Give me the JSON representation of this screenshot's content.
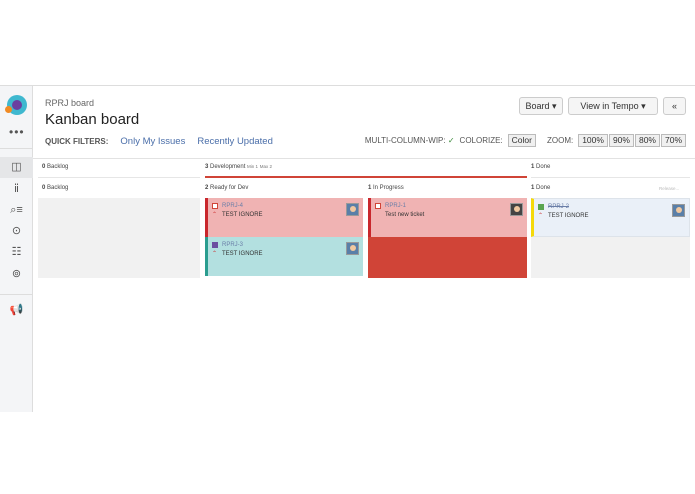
{
  "header": {
    "breadcrumb": "RPRJ board",
    "title": "Kanban board"
  },
  "quick_filters": {
    "label": "QUICK FILTERS:",
    "items": [
      "Only My Issues",
      "Recently Updated"
    ]
  },
  "toolbar": {
    "board": "Board ▾",
    "tempo": "View in Tempo ▾",
    "collapse": "«",
    "wip_label": "MULTI-COLUMN-WIP:",
    "wip_check": "✓",
    "colorize_label": "COLORIZE:",
    "color_btn": "Color",
    "zoom_label": "ZOOM:",
    "zoom": [
      "100%",
      "90%",
      "80%",
      "70%"
    ]
  },
  "sidebar": {
    "icons": [
      "board-icon",
      "reports-icon",
      "issues-search-icon",
      "releases-icon",
      "components-icon",
      "settings-icon",
      "feedback-icon"
    ]
  },
  "columns": {
    "top": [
      {
        "count": "0",
        "name": "Backlog"
      },
      {
        "count": "3",
        "name": "Development",
        "min": "Min 1",
        "max": "Max 2"
      },
      {
        "count": "1",
        "name": "Done"
      }
    ],
    "sub": [
      {
        "count": "0",
        "name": "Backlog"
      },
      {
        "count": "2",
        "name": "Ready for Dev"
      },
      {
        "count": "1",
        "name": "In Progress"
      },
      {
        "count": "1",
        "name": "Done",
        "extra": "Release..."
      }
    ]
  },
  "cards": [
    {
      "key": "RPRJ-4",
      "summary": "TEST IGNORE",
      "type": "bug",
      "color": "#c9272d"
    },
    {
      "key": "RPRJ-3",
      "summary": "TEST IGNORE",
      "type": "epic",
      "color": "#2a9d8f"
    },
    {
      "key": "RPRJ-1",
      "summary": "Test new ticket",
      "type": "bug",
      "color": "#c9272d"
    },
    {
      "key": "RPRJ-2",
      "summary": "TEST IGNORE",
      "type": "story",
      "color": "#f5d90a",
      "done": true
    }
  ],
  "colors": {
    "wip_exceeded": "#d04437",
    "card_red": "#f0b3b3",
    "card_teal": "#b3e0e0",
    "card_done": "#eaf0f8"
  }
}
